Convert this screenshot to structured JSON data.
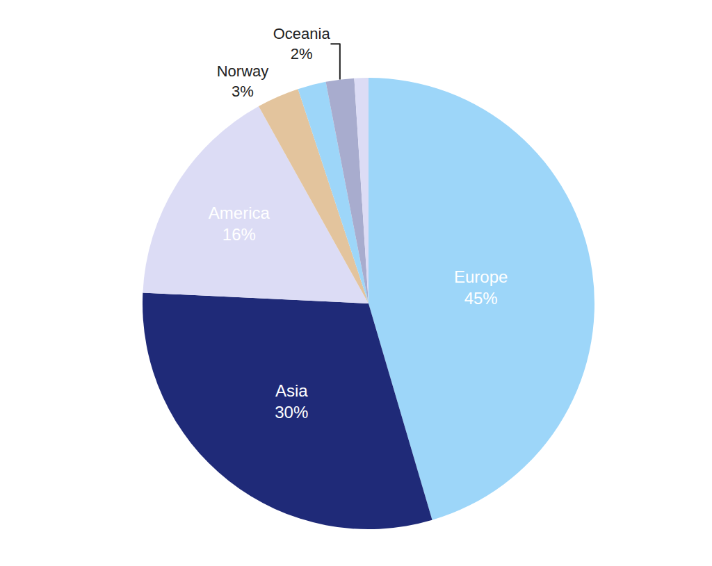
{
  "chart_data": {
    "type": "pie",
    "categories": [
      "Europe",
      "Asia",
      "America",
      "Norway",
      null,
      "Oceania",
      null
    ],
    "values": [
      45,
      30,
      16,
      3,
      2,
      2,
      1
    ],
    "value_labels": [
      "45%",
      "30%",
      "16%",
      "3%",
      null,
      "2%",
      null
    ],
    "colors": [
      "#9dd6f9",
      "#1f2a78",
      "#dcdcf5",
      "#e3c49d",
      "#9dd6f9",
      "#a8acce",
      "#dcdcf5"
    ],
    "data_labels": true
  }
}
